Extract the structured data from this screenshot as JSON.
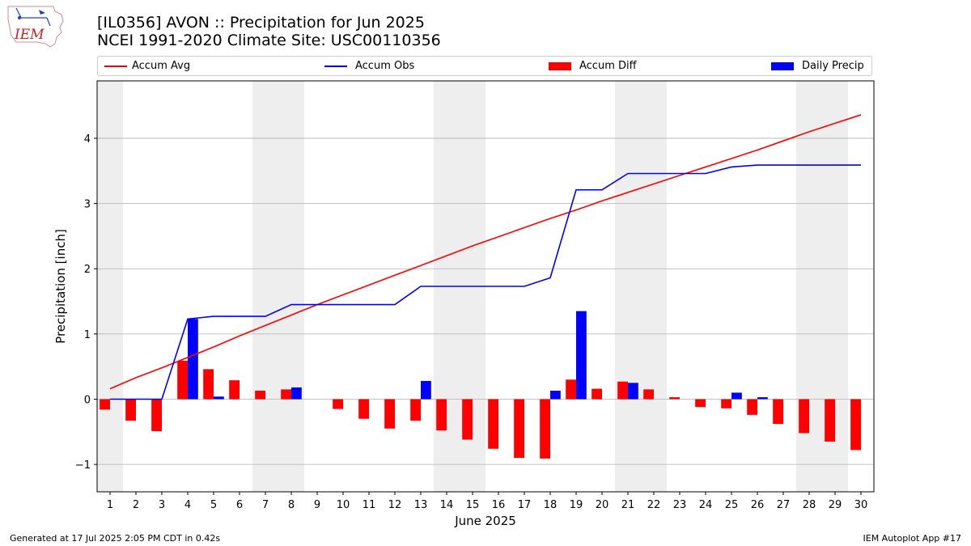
{
  "header": {
    "logo_text": "IEM",
    "title_line1": "[IL0356] AVON :: Precipitation for Jun 2025",
    "title_line2": "NCEI 1991-2020 Climate Site: USC00110356"
  },
  "legend": {
    "items": [
      {
        "label": "Accum Avg",
        "kind": "line",
        "color": "#ff0000"
      },
      {
        "label": "Accum Obs",
        "kind": "line",
        "color": "#0000ff"
      },
      {
        "label": "Accum Diff",
        "kind": "bar",
        "color": "#ff0000"
      },
      {
        "label": "Daily Precip",
        "kind": "bar",
        "color": "#0000ff"
      }
    ]
  },
  "footer": {
    "left": "Generated at 17 Jul 2025 2:05 PM CDT in 0.42s",
    "right": "IEM Autoplot App #17"
  },
  "chart_data": {
    "type": "bar",
    "xlabel": "June 2025",
    "ylabel": "Precipitation [inch]",
    "ylim": [
      -1.42,
      4.88
    ],
    "xlim": [
      0.5,
      30.5
    ],
    "grid": "horizontal",
    "legend_position": "top",
    "yticks": [
      -1,
      0,
      1,
      2,
      3,
      4
    ],
    "ytick_labels": [
      "−1",
      "0",
      "1",
      "2",
      "3",
      "4"
    ],
    "x": [
      1,
      2,
      3,
      4,
      5,
      6,
      7,
      8,
      9,
      10,
      11,
      12,
      13,
      14,
      15,
      16,
      17,
      18,
      19,
      20,
      21,
      22,
      23,
      24,
      25,
      26,
      27,
      28,
      29,
      30
    ],
    "xtick_labels": [
      "1",
      "2",
      "3",
      "4",
      "5",
      "6",
      "7",
      "8",
      "9",
      "10",
      "11",
      "12",
      "13",
      "14",
      "15",
      "16",
      "17",
      "18",
      "19",
      "20",
      "21",
      "22",
      "23",
      "24",
      "25",
      "26",
      "27",
      "28",
      "29",
      "30"
    ],
    "weekend_spans": [
      [
        0.5,
        1.5
      ],
      [
        6.5,
        8.5
      ],
      [
        13.5,
        15.5
      ],
      [
        20.5,
        22.5
      ],
      [
        27.5,
        29.5
      ]
    ],
    "colors": {
      "avg": "#ff0000",
      "obs": "#0000ff",
      "diff": "#ff0000",
      "daily": "#0000ff",
      "weekend": "#eeeeee",
      "grid": "#b0b0b0"
    },
    "series": [
      {
        "name": "Accum Avg",
        "type": "line",
        "values": [
          0.16,
          0.33,
          0.48,
          0.64,
          0.8,
          0.97,
          1.13,
          1.29,
          1.45,
          1.6,
          1.75,
          1.9,
          2.05,
          2.2,
          2.35,
          2.49,
          2.63,
          2.77,
          2.9,
          3.04,
          3.17,
          3.3,
          3.43,
          3.56,
          3.69,
          3.82,
          3.96,
          4.1,
          4.23,
          4.36
        ]
      },
      {
        "name": "Accum Obs",
        "type": "line",
        "values": [
          0.0,
          0.0,
          0.0,
          1.23,
          1.27,
          1.27,
          1.27,
          1.45,
          1.45,
          1.45,
          1.45,
          1.45,
          1.73,
          1.73,
          1.73,
          1.73,
          1.73,
          1.86,
          3.21,
          3.21,
          3.46,
          3.46,
          3.46,
          3.46,
          3.56,
          3.59,
          3.59,
          3.59,
          3.59,
          3.59
        ]
      },
      {
        "name": "Accum Diff",
        "type": "bar",
        "values": [
          -0.16,
          -0.33,
          -0.49,
          0.59,
          0.46,
          0.29,
          0.13,
          0.15,
          0.0,
          -0.15,
          -0.3,
          -0.45,
          -0.33,
          -0.48,
          -0.62,
          -0.76,
          -0.9,
          -0.91,
          0.3,
          0.16,
          0.27,
          0.15,
          0.03,
          -0.12,
          -0.14,
          -0.24,
          -0.38,
          -0.52,
          -0.65,
          -0.78
        ]
      },
      {
        "name": "Daily Precip",
        "type": "bar",
        "values": [
          0.0,
          0.0,
          0.0,
          1.23,
          0.04,
          0.0,
          0.0,
          0.18,
          0.0,
          0.0,
          0.0,
          0.0,
          0.28,
          0.0,
          0.0,
          0.0,
          0.0,
          0.13,
          1.35,
          0.0,
          0.25,
          0.0,
          0.0,
          0.0,
          0.1,
          0.03,
          0.0,
          0.0,
          0.0,
          0.0
        ]
      }
    ]
  }
}
